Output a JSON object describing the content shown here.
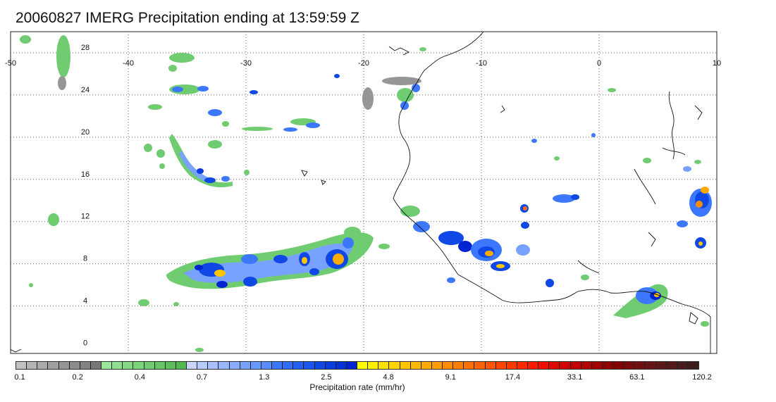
{
  "title": "20060827 IMERG Precipitation ending at 13:59:59 Z",
  "map": {
    "lon_labels": [
      "-50",
      "-40",
      "-30",
      "-20",
      "-10",
      "0",
      "10"
    ],
    "lat_labels": [
      "28",
      "24",
      "20",
      "16",
      "12",
      "8",
      "4",
      "0"
    ],
    "extent": {
      "lon_min": -50,
      "lon_max": 10,
      "lat_min": -0.5,
      "lat_max": 30
    }
  },
  "colorbar": {
    "label": "Precipitation rate (mm/hr)",
    "tick_labels": [
      "0.1",
      "0.2",
      "0.4",
      "0.7",
      "1.3",
      "2.5",
      "4.8",
      "9.1",
      "17.4",
      "33.1",
      "63.1",
      "120.2"
    ],
    "colors": [
      "#c0c0c0",
      "#b4b4b4",
      "#aaaaaa",
      "#a0a0a0",
      "#969696",
      "#8c8c8c",
      "#828282",
      "#787878",
      "#98e698",
      "#8ee08e",
      "#84da84",
      "#7ad47a",
      "#70cc70",
      "#66c666",
      "#5cbf5c",
      "#52b852",
      "#c8d4ff",
      "#b8cbff",
      "#a8c0ff",
      "#98b6ff",
      "#88acff",
      "#78a2ff",
      "#6898ff",
      "#588eff",
      "#3c78ff",
      "#306cff",
      "#2560f5",
      "#1a55ee",
      "#1048e6",
      "#0a3ce0",
      "#0630d8",
      "#0224d0",
      "#ffff00",
      "#fff000",
      "#ffe200",
      "#ffd400",
      "#ffc600",
      "#ffb800",
      "#ffaa00",
      "#ff9c00",
      "#ff8c00",
      "#ff7e00",
      "#ff7000",
      "#ff6200",
      "#ff5400",
      "#ff4600",
      "#ff3800",
      "#ff2a00",
      "#ff1a00",
      "#f01000",
      "#e00800",
      "#d00000",
      "#c00000",
      "#b00000",
      "#a00000",
      "#900000",
      "#840000",
      "#7a0a0a",
      "#701010",
      "#661414",
      "#5c1818",
      "#521a1a",
      "#481c1c",
      "#3e1c1c"
    ]
  }
}
